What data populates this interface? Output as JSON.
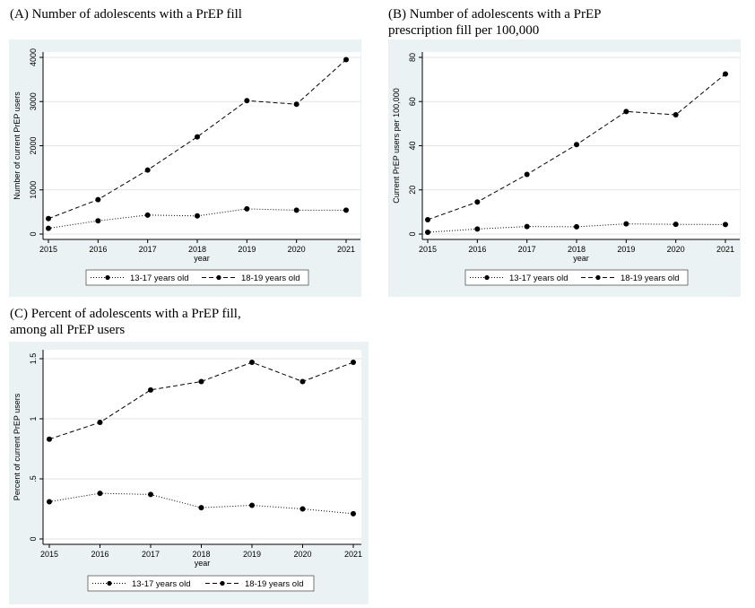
{
  "colors": {
    "plot_region": "#ffffff",
    "outer_region": "#eaf2f3",
    "line": "#000000"
  },
  "chart_data": [
    {
      "type": "line",
      "title_lines": [
        "(A) Number of adolescents with a PrEP fill"
      ],
      "xlabel": "year",
      "ylabel": "Number of current PrEP users",
      "x": [
        2015,
        2016,
        2017,
        2018,
        2019,
        2020,
        2021
      ],
      "x_ticks": [
        "2015",
        "2016",
        "2017",
        "2018",
        "2019",
        "2020",
        "2021"
      ],
      "ylim": [
        0,
        4000
      ],
      "y_ticks": [
        0,
        1000,
        2000,
        3000,
        4000
      ],
      "y_tick_labels": [
        "0",
        "1000",
        "2000",
        "3000",
        "4000"
      ],
      "grid": true,
      "legend_position": "bottom",
      "series": [
        {
          "name": "13-17 years old",
          "style": "dotted",
          "values": [
            130,
            300,
            430,
            410,
            570,
            540,
            540
          ]
        },
        {
          "name": "18-19 years old",
          "style": "dashed",
          "values": [
            350,
            780,
            1450,
            2200,
            3020,
            2940,
            3950
          ]
        }
      ]
    },
    {
      "type": "line",
      "title_lines": [
        "(B) Number of adolescents with a PrEP",
        "prescription fill per 100,000"
      ],
      "xlabel": "year",
      "ylabel": "Current PrEP users per 100,000",
      "x": [
        2015,
        2016,
        2017,
        2018,
        2019,
        2020,
        2021
      ],
      "x_ticks": [
        "2015",
        "2016",
        "2017",
        "2018",
        "2019",
        "2020",
        "2021"
      ],
      "ylim": [
        0,
        80
      ],
      "y_ticks": [
        0,
        20,
        40,
        60,
        80
      ],
      "y_tick_labels": [
        "0",
        "20",
        "40",
        "60",
        "80"
      ],
      "grid": true,
      "legend_position": "bottom",
      "series": [
        {
          "name": "13-17 years old",
          "style": "dotted",
          "values": [
            0.8,
            2.3,
            3.4,
            3.3,
            4.6,
            4.4,
            4.3
          ]
        },
        {
          "name": "18-19 years old",
          "style": "dashed",
          "values": [
            6.5,
            14.5,
            27,
            40.5,
            55.5,
            54,
            72.5
          ]
        }
      ]
    },
    {
      "type": "line",
      "title_lines": [
        "(C) Percent of adolescents with a PrEP fill,",
        "among all PrEP users"
      ],
      "xlabel": "year",
      "ylabel": "Percent of current PrEP users",
      "x": [
        2015,
        2016,
        2017,
        2018,
        2019,
        2020,
        2021
      ],
      "x_ticks": [
        "2015",
        "2016",
        "2017",
        "2018",
        "2019",
        "2020",
        "2021"
      ],
      "ylim": [
        0,
        1.5
      ],
      "y_ticks": [
        0,
        0.5,
        1,
        1.5
      ],
      "y_tick_labels": [
        "0",
        ".5",
        "1",
        "1.5"
      ],
      "grid": true,
      "legend_position": "bottom",
      "series": [
        {
          "name": "13-17 years old",
          "style": "dotted",
          "values": [
            0.31,
            0.38,
            0.37,
            0.26,
            0.28,
            0.25,
            0.21
          ]
        },
        {
          "name": "18-19 years old",
          "style": "dashed",
          "values": [
            0.83,
            0.97,
            1.24,
            1.31,
            1.47,
            1.31,
            1.47
          ]
        }
      ]
    }
  ]
}
